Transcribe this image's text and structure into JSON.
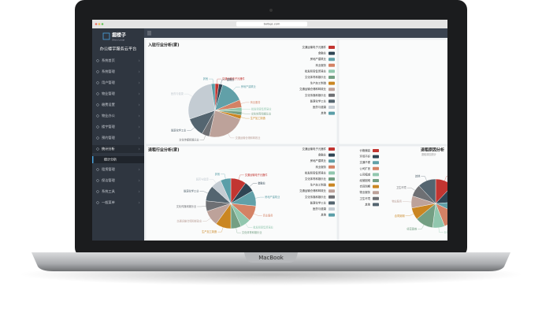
{
  "browser": {
    "url": "bolbgz.com"
  },
  "sidebar": {
    "logo": "掘楼子",
    "logo_sub": "Shou Louzi",
    "title": "办公楼宇服务云平台",
    "menu": [
      "系统首页",
      "系统管理",
      "用户管理",
      "物业管理",
      "缴费设置",
      "物业办公",
      "楼宇管理",
      "预约管理",
      "统计分析",
      "租赁管理",
      "保洁管理",
      "系统工具",
      "一般菜单"
    ],
    "active": 8,
    "submenu": "统计分析"
  },
  "device": {
    "label": "MacBook"
  },
  "panels": [
    {
      "type": "pie",
      "title": "入驻行业分析(家)",
      "categories": [
        "交通运输电子元器件",
        "金融业",
        "房地产建筑业",
        "商业服务",
        "批发和零售贸易业",
        "文化体育和娱乐业",
        "生产加工制造",
        "交通运输仓储和邮政业",
        "文化传媒和娱乐业",
        "能源化学工业",
        "医药与健康",
        "其他"
      ],
      "colors": [
        "#c23531",
        "#2f4554",
        "#61a0a8",
        "#d48265",
        "#91c7ae",
        "#749f83",
        "#ca8622",
        "#bda29a",
        "#6e7074",
        "#546570",
        "#c4ccd3",
        "#5a9ea8"
      ],
      "values": [
        1,
        1,
        6,
        2,
        1,
        1,
        1,
        10,
        2,
        5,
        12,
        1
      ]
    },
    {
      "type": "pie",
      "title": "退租行业分析(家)",
      "categories": [
        "交通运输电子元器件",
        "金融业",
        "房地产建筑业",
        "商业服务",
        "批发和零售贸易业",
        "文化体育和娱乐业",
        "生产加工制造",
        "交通运输仓储和邮政业",
        "文化传媒和娱乐业",
        "能源化学工业",
        "医药与健康",
        "其他"
      ],
      "colors": [
        "#c23531",
        "#2f4554",
        "#61a0a8",
        "#d48265",
        "#91c7ae",
        "#749f83",
        "#ca8622",
        "#bda29a",
        "#6e7074",
        "#546570",
        "#c4ccd3",
        "#5a9ea8"
      ],
      "values": [
        3,
        2,
        3,
        3,
        2,
        2,
        3,
        3,
        2,
        3,
        2,
        2
      ]
    },
    {
      "type": "pie",
      "title": "退租原因分析",
      "subtitle": "退租原因统计",
      "categories": [
        "价格偏高",
        "环境不好",
        "交通不便",
        "公司扩张",
        "公司缩减",
        "经营困难",
        "合同到期",
        "物业服务",
        "卫生环境",
        "其他"
      ],
      "colors": [
        "#c23531",
        "#2f4554",
        "#61a0a8",
        "#d48265",
        "#91c7ae",
        "#749f83",
        "#ca8622",
        "#bda29a",
        "#6e7074",
        "#546570"
      ],
      "values": [
        3,
        3,
        2,
        3,
        2,
        3,
        2,
        2,
        2,
        3
      ]
    }
  ]
}
